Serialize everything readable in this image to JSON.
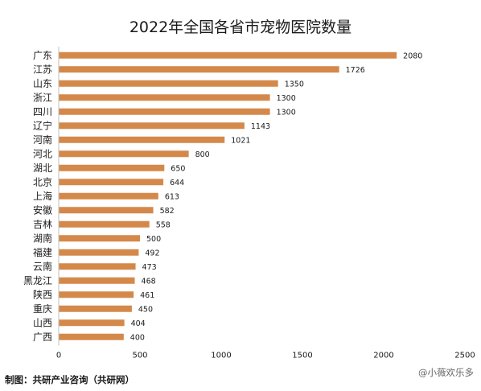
{
  "colors": {
    "bar": "#D4894A",
    "text": "#1a1a1a",
    "axis": "#bfbfbf"
  },
  "footer": {
    "source": "制图：共研产业咨询（共研网）",
    "watermark": "@小薇欢乐多"
  },
  "chart_data": {
    "type": "bar",
    "orientation": "horizontal",
    "title": "2022年全国各省市宠物医院数量",
    "categories": [
      "广东",
      "江苏",
      "山东",
      "浙江",
      "四川",
      "辽宁",
      "河南",
      "河北",
      "湖北",
      "北京",
      "上海",
      "安徽",
      "吉林",
      "湖南",
      "福建",
      "云南",
      "黑龙江",
      "陕西",
      "重庆",
      "山西",
      "广西"
    ],
    "values": [
      2080,
      1726,
      1350,
      1300,
      1300,
      1143,
      1021,
      800,
      650,
      644,
      613,
      582,
      558,
      500,
      492,
      473,
      468,
      461,
      450,
      404,
      400
    ],
    "xlim": [
      0,
      2500
    ],
    "xticks": [
      "0",
      "500",
      "1000",
      "1500",
      "2000",
      "2500"
    ],
    "grid": false,
    "legend": "none"
  }
}
